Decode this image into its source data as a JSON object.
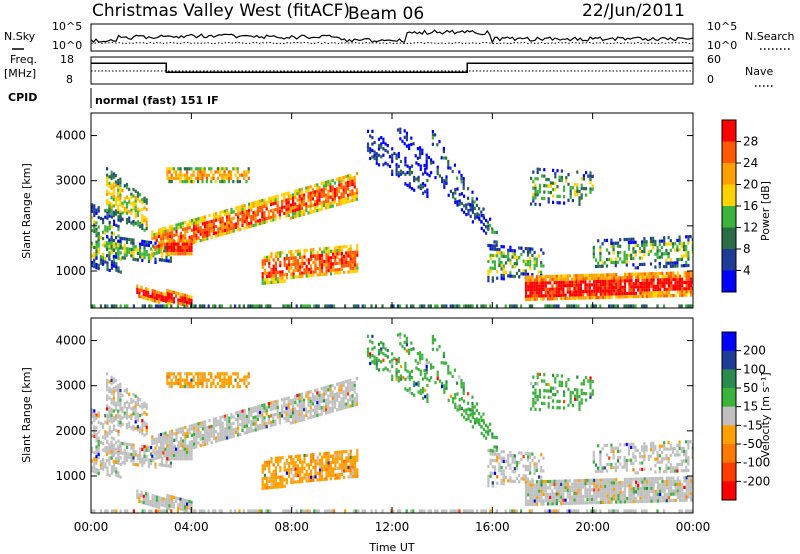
{
  "header": {
    "title": "Christmas Valley West (fitACF)",
    "beam": "Beam 06",
    "date": "22/Jun/2011"
  },
  "summary_panels": {
    "nsky_label": "N.Sky",
    "nsky_ticks": [
      "10^5",
      "10^0"
    ],
    "nsearch_label": "N.Search",
    "nsearch_ticks": [
      "10^5",
      "10^0"
    ],
    "freq_label": "Freq.",
    "freq_unit": "[MHz]",
    "freq_ticks": [
      "18",
      "8"
    ],
    "nave_label": "Nave",
    "nave_ticks": [
      "60",
      "0"
    ],
    "cpid_label": "CPID",
    "cpid_text": "normal (fast) 151 IF"
  },
  "chart_data": [
    {
      "type": "heatmap",
      "name": "power",
      "ylabel": "Slant Range [km]",
      "y_ticks": [
        "4000",
        "3000",
        "2000",
        "1000"
      ],
      "ylim": [
        180,
        4500
      ],
      "xlim": [
        "00:00",
        "24:00"
      ],
      "colorbar": {
        "label": "Power [dB]",
        "ticks": [
          "28",
          "24",
          "20",
          "16",
          "12",
          "8",
          "4"
        ],
        "colors": [
          "#ff0000",
          "#ff5a00",
          "#ffa000",
          "#ffd200",
          "#3cb43c",
          "#2a6e46",
          "#1e3c96",
          "#0000ff"
        ]
      }
    },
    {
      "type": "heatmap",
      "name": "velocity",
      "ylabel": "Slant Range [km]",
      "y_ticks": [
        "4000",
        "3000",
        "2000",
        "1000"
      ],
      "ylim": [
        180,
        4500
      ],
      "xlim": [
        "00:00",
        "24:00"
      ],
      "colorbar": {
        "label": "Velocity [m s⁻¹]",
        "ticks": [
          "200",
          "100",
          "50",
          "15",
          "-15",
          "-50",
          "-100",
          "-200"
        ],
        "colors": [
          "#0000ff",
          "#1e3c96",
          "#2a8a50",
          "#3cb43c",
          "#c0c0c0",
          "#ffa000",
          "#ff7800",
          "#ff3c00",
          "#ff0000"
        ]
      }
    }
  ],
  "x_axis": {
    "ticks": [
      "00:00",
      "04:00",
      "08:00",
      "12:00",
      "16:00",
      "20:00",
      "00:00"
    ],
    "label": "Time UT"
  },
  "colors": {
    "power_strong": "#ff2000",
    "power_mid": "#ffa000",
    "power_weak": "#3cb43c",
    "velocity_neutral": "#c0c0c0",
    "velocity_away": "#ff8c00"
  }
}
